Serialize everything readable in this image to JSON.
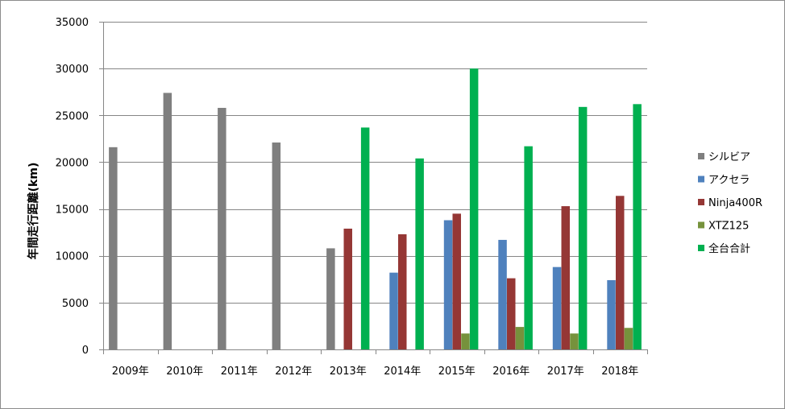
{
  "chart_data": {
    "type": "bar",
    "title": "",
    "xlabel": "",
    "ylabel": "年間走行距離(km)",
    "ylim": [
      0,
      35000
    ],
    "yticks": [
      0,
      5000,
      10000,
      15000,
      20000,
      25000,
      30000,
      35000
    ],
    "grid": true,
    "legend_position": "right",
    "categories": [
      "2009年",
      "2010年",
      "2011年",
      "2012年",
      "2013年",
      "2014年",
      "2015年",
      "2016年",
      "2017年",
      "2018年"
    ],
    "series": [
      {
        "name": "シルビア",
        "color": "#7f7f7f",
        "values": [
          21600,
          27400,
          25800,
          22100,
          10800,
          null,
          null,
          null,
          null,
          null
        ]
      },
      {
        "name": "アクセラ",
        "color": "#4f81bd",
        "values": [
          null,
          null,
          null,
          null,
          null,
          8200,
          13800,
          11700,
          8800,
          7400
        ]
      },
      {
        "name": "Ninja400R",
        "color": "#953735",
        "values": [
          null,
          null,
          null,
          null,
          12900,
          12300,
          14500,
          7600,
          15300,
          16400
        ]
      },
      {
        "name": "XTZ125",
        "color": "#76923c",
        "values": [
          null,
          null,
          null,
          null,
          null,
          null,
          1700,
          2400,
          1700,
          2300
        ]
      },
      {
        "name": "全台合計",
        "color": "#00b050",
        "values": [
          null,
          null,
          null,
          null,
          23700,
          20400,
          30000,
          21700,
          25900,
          26200
        ]
      }
    ]
  }
}
